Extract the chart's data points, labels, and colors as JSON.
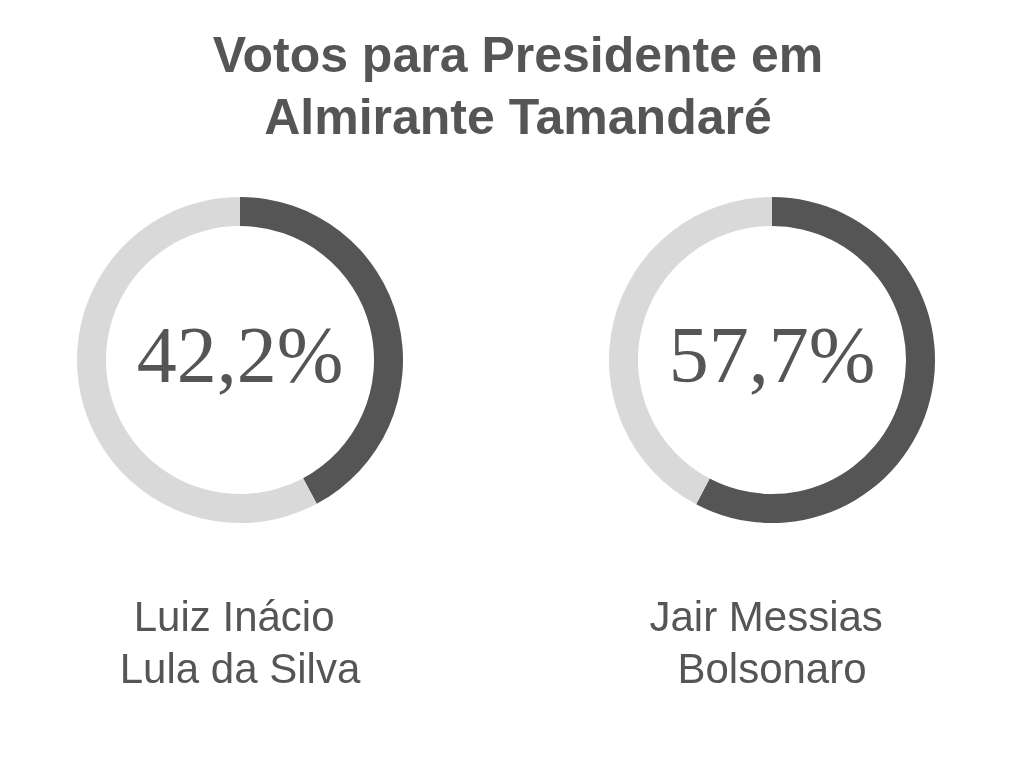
{
  "chart_data": [
    {
      "type": "donut",
      "title": "Votos para Presidente em Almirante Tamandaré",
      "xlabel": "Luiz Inácio Lula da Silva",
      "categories": [
        null,
        null
      ],
      "values": [
        42.2,
        57.8
      ],
      "colors": [
        "#555555",
        "#d9d9d9"
      ],
      "annotations": [
        "42,2%"
      ]
    },
    {
      "type": "donut",
      "xlabel": "Jair Messias Bolsonaro",
      "categories": [
        null,
        null
      ],
      "values": [
        57.7,
        42.3
      ],
      "colors": [
        "#555555",
        "#d9d9d9"
      ],
      "annotations": [
        "57,7%"
      ]
    }
  ]
}
